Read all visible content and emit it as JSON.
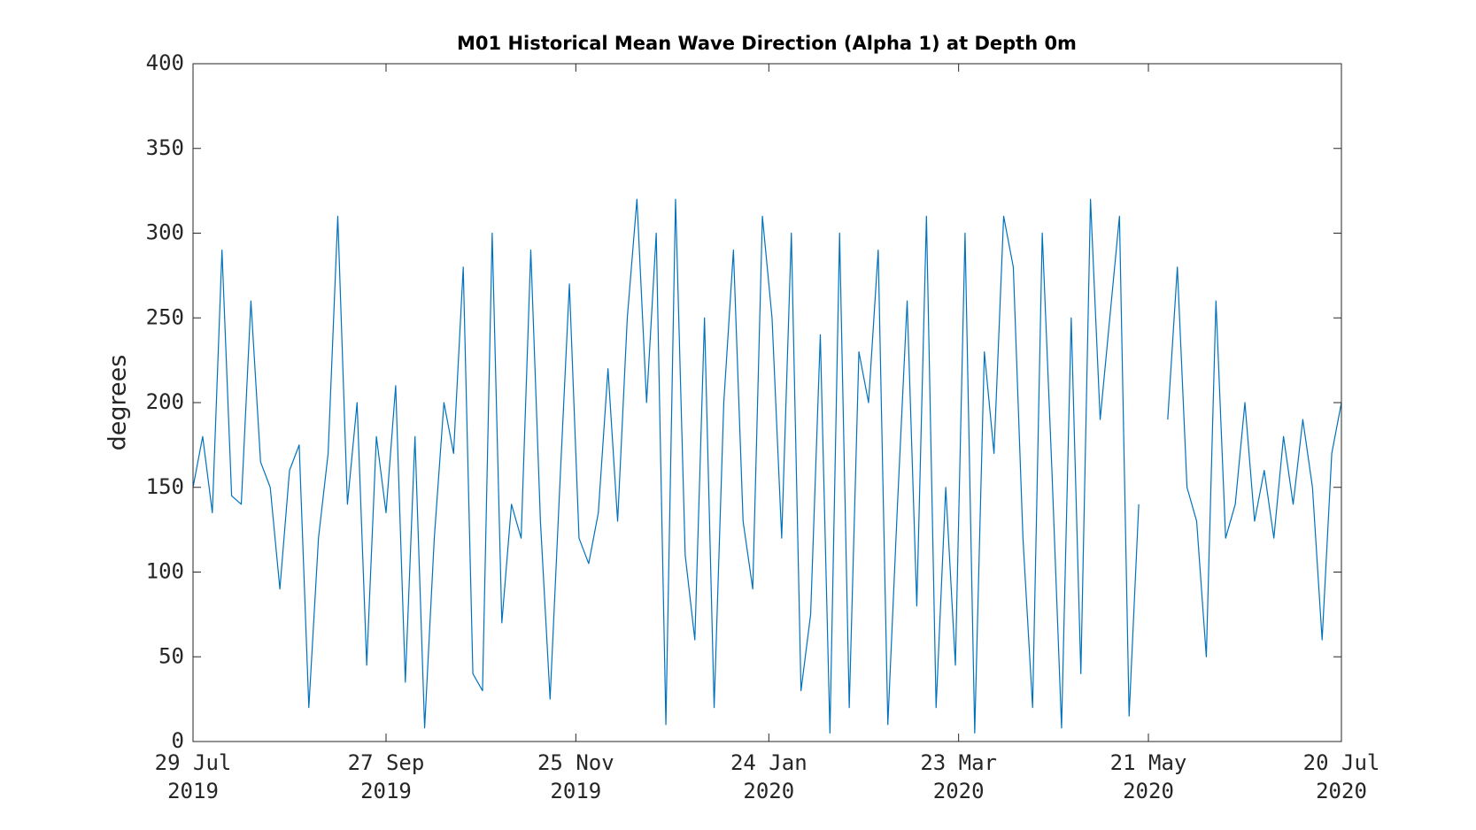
{
  "chart_data": {
    "type": "line",
    "title": "M01 Historical Mean Wave Direction (Alpha 1) at Depth 0m",
    "ylabel": "degrees",
    "xlim": [
      "2019-07-29",
      "2020-07-20"
    ],
    "ylim": [
      0,
      400
    ],
    "yticks": [
      0,
      50,
      100,
      150,
      200,
      250,
      300,
      350,
      400
    ],
    "xticks": [
      {
        "value": "2019-07-29",
        "label": [
          "29 Jul",
          "2019"
        ]
      },
      {
        "value": "2019-09-27",
        "label": [
          "27 Sep",
          "2019"
        ]
      },
      {
        "value": "2019-11-25",
        "label": [
          "25 Nov",
          "2019"
        ]
      },
      {
        "value": "2020-01-24",
        "label": [
          "24 Jan",
          "2020"
        ]
      },
      {
        "value": "2020-03-23",
        "label": [
          "23 Mar",
          "2020"
        ]
      },
      {
        "value": "2020-05-21",
        "label": [
          "21 May",
          "2020"
        ]
      },
      {
        "value": "2020-07-20",
        "label": [
          "20 Jul",
          "2020"
        ]
      }
    ],
    "grid": false,
    "x": [
      "2019-07-29",
      "2019-08-01",
      "2019-08-04",
      "2019-08-07",
      "2019-08-10",
      "2019-08-13",
      "2019-08-16",
      "2019-08-19",
      "2019-08-22",
      "2019-08-25",
      "2019-08-28",
      "2019-08-31",
      "2019-09-03",
      "2019-09-06",
      "2019-09-09",
      "2019-09-12",
      "2019-09-15",
      "2019-09-18",
      "2019-09-21",
      "2019-09-24",
      "2019-09-27",
      "2019-09-30",
      "2019-10-03",
      "2019-10-06",
      "2019-10-09",
      "2019-10-12",
      "2019-10-15",
      "2019-10-18",
      "2019-10-21",
      "2019-10-24",
      "2019-10-27",
      "2019-10-30",
      "2019-11-02",
      "2019-11-05",
      "2019-11-08",
      "2019-11-11",
      "2019-11-14",
      "2019-11-17",
      "2019-11-20",
      "2019-11-23",
      "2019-11-26",
      "2019-11-29",
      "2019-12-02",
      "2019-12-05",
      "2019-12-08",
      "2019-12-11",
      "2019-12-14",
      "2019-12-17",
      "2019-12-20",
      "2019-12-23",
      "2019-12-26",
      "2019-12-29",
      "2020-01-01",
      "2020-01-04",
      "2020-01-07",
      "2020-01-10",
      "2020-01-13",
      "2020-01-16",
      "2020-01-19",
      "2020-01-22",
      "2020-01-25",
      "2020-01-28",
      "2020-01-31",
      "2020-02-03",
      "2020-02-06",
      "2020-02-09",
      "2020-02-12",
      "2020-02-15",
      "2020-02-18",
      "2020-02-21",
      "2020-02-24",
      "2020-02-27",
      "2020-03-01",
      "2020-03-04",
      "2020-03-07",
      "2020-03-10",
      "2020-03-13",
      "2020-03-16",
      "2020-03-19",
      "2020-03-22",
      "2020-03-25",
      "2020-03-28",
      "2020-03-31",
      "2020-04-03",
      "2020-04-06",
      "2020-04-09",
      "2020-04-12",
      "2020-04-15",
      "2020-04-18",
      "2020-04-21",
      "2020-04-24",
      "2020-04-27",
      "2020-04-30",
      "2020-05-03",
      "2020-05-06",
      "2020-05-09",
      "2020-05-12",
      "2020-05-15",
      "2020-05-18",
      "2020-05-21",
      "2020-05-24",
      "2020-05-27",
      "2020-05-30",
      "2020-06-02",
      "2020-06-05",
      "2020-06-08",
      "2020-06-11",
      "2020-06-14",
      "2020-06-17",
      "2020-06-20",
      "2020-06-23",
      "2020-06-26",
      "2020-06-29",
      "2020-07-02",
      "2020-07-05",
      "2020-07-08",
      "2020-07-11",
      "2020-07-14",
      "2020-07-17",
      "2020-07-20"
    ],
    "series": [
      {
        "name": "Mean Wave Direction",
        "color": "#0072bd",
        "values": [
          150,
          180,
          135,
          290,
          145,
          140,
          260,
          165,
          150,
          90,
          160,
          175,
          20,
          120,
          170,
          310,
          140,
          200,
          45,
          180,
          135,
          210,
          35,
          180,
          8,
          120,
          200,
          170,
          280,
          40,
          30,
          300,
          70,
          140,
          120,
          290,
          130,
          25,
          150,
          270,
          120,
          105,
          135,
          220,
          130,
          250,
          320,
          200,
          300,
          10,
          320,
          110,
          60,
          250,
          20,
          200,
          290,
          130,
          90,
          310,
          250,
          120,
          300,
          30,
          75,
          240,
          5,
          300,
          20,
          230,
          200,
          290,
          10,
          140,
          260,
          80,
          310,
          20,
          150,
          45,
          300,
          5,
          230,
          170,
          310,
          280,
          120,
          20,
          300,
          160,
          8,
          250,
          40,
          320,
          190,
          250,
          310,
          15,
          140,
          null,
          null,
          190,
          280,
          150,
          130,
          50,
          260,
          120,
          140,
          200,
          130,
          160,
          120,
          180,
          140,
          190,
          150,
          60,
          170,
          200
        ]
      }
    ]
  }
}
